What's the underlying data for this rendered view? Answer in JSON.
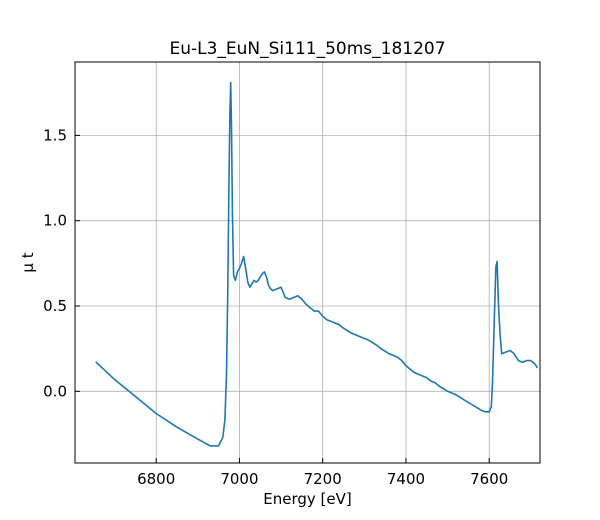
{
  "chart_data": {
    "type": "line",
    "title": "Eu-L3_EuN_Si111_50ms_181207",
    "xlabel": "Energy [eV]",
    "ylabel": "μ t",
    "xlim": [
      6605,
      7722
    ],
    "ylim": [
      -0.42,
      1.93
    ],
    "xticks": [
      6800,
      7000,
      7200,
      7400,
      7600
    ],
    "xtick_labels": [
      "6800",
      "7000",
      "7200",
      "7400",
      "7600"
    ],
    "yticks": [
      0.0,
      0.5,
      1.0,
      1.5
    ],
    "ytick_labels": [
      "0.0",
      "0.5",
      "1.0",
      "1.5"
    ],
    "grid": true,
    "legend": "none",
    "series": [
      {
        "color": "#1f77b4",
        "x": [
          6656,
          6700,
          6750,
          6800,
          6850,
          6900,
          6930,
          6950,
          6960,
          6965,
          6969,
          6972,
          6975,
          6977,
          6979,
          6981,
          6983,
          6986,
          6990,
          6995,
          7000,
          7005,
          7010,
          7015,
          7020,
          7025,
          7030,
          7035,
          7040,
          7045,
          7050,
          7055,
          7060,
          7065,
          7070,
          7075,
          7080,
          7090,
          7100,
          7110,
          7120,
          7130,
          7140,
          7150,
          7160,
          7170,
          7180,
          7190,
          7200,
          7210,
          7220,
          7230,
          7240,
          7250,
          7270,
          7290,
          7310,
          7330,
          7340,
          7360,
          7370,
          7380,
          7390,
          7400,
          7410,
          7420,
          7430,
          7450,
          7460,
          7470,
          7480,
          7500,
          7520,
          7540,
          7560,
          7580,
          7590,
          7600,
          7605,
          7608,
          7612,
          7616,
          7619,
          7622,
          7626,
          7630,
          7640,
          7650,
          7660,
          7670,
          7680,
          7690,
          7700,
          7710,
          7715
        ],
        "y": [
          0.17,
          0.07,
          -0.03,
          -0.13,
          -0.21,
          -0.28,
          -0.32,
          -0.32,
          -0.27,
          -0.17,
          0.1,
          0.6,
          1.25,
          1.63,
          1.81,
          1.55,
          1.05,
          0.68,
          0.65,
          0.7,
          0.72,
          0.75,
          0.79,
          0.72,
          0.64,
          0.61,
          0.63,
          0.65,
          0.64,
          0.65,
          0.67,
          0.69,
          0.7,
          0.67,
          0.62,
          0.6,
          0.59,
          0.6,
          0.61,
          0.55,
          0.54,
          0.55,
          0.56,
          0.54,
          0.51,
          0.49,
          0.47,
          0.47,
          0.44,
          0.42,
          0.41,
          0.4,
          0.39,
          0.37,
          0.34,
          0.32,
          0.3,
          0.27,
          0.25,
          0.22,
          0.21,
          0.2,
          0.18,
          0.15,
          0.13,
          0.11,
          0.1,
          0.08,
          0.06,
          0.05,
          0.03,
          0.0,
          -0.02,
          -0.05,
          -0.08,
          -0.11,
          -0.12,
          -0.12,
          -0.09,
          0.05,
          0.4,
          0.73,
          0.76,
          0.52,
          0.34,
          0.22,
          0.23,
          0.24,
          0.22,
          0.18,
          0.17,
          0.18,
          0.18,
          0.16,
          0.14
        ]
      }
    ]
  }
}
